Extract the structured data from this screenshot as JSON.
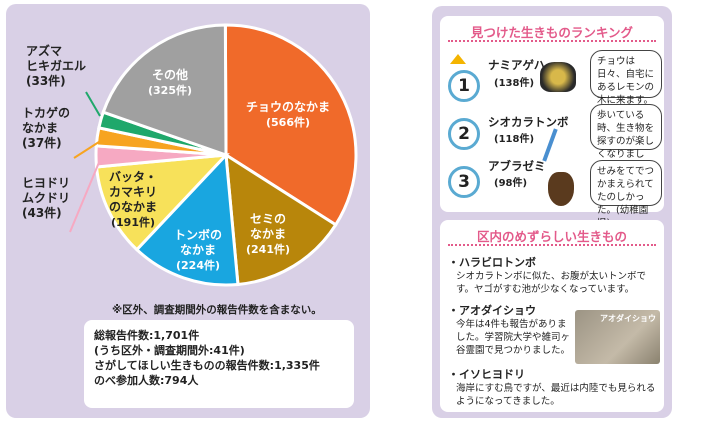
{
  "chart_data": {
    "type": "pie",
    "slices": [
      {
        "name": "チョウのなかま",
        "count": "(566件)",
        "value": 566,
        "color": "#f06a2a"
      },
      {
        "name": "セミのなかま",
        "count": "(241件)",
        "value": 241,
        "color": "#b8860b"
      },
      {
        "name": "トンボのなかま",
        "count": "(224件)",
        "value": 224,
        "color": "#19a6e0"
      },
      {
        "name": "バッタ・カマキリのなかま",
        "count": "(191件)",
        "value": 191,
        "color": "#f7e15a"
      },
      {
        "name": "ヒヨドリ ムクドリ",
        "count": "(43件)",
        "value": 43,
        "color": "#f6a9c2"
      },
      {
        "name": "トカゲのなかま",
        "count": "(37件)",
        "value": 37,
        "color": "#f7a420"
      },
      {
        "name": "アズマヒキガエル",
        "count": "(33件)",
        "value": 33,
        "color": "#1fa86b"
      },
      {
        "name": "その他",
        "count": "(325件)",
        "value": 325,
        "color": "#a0a0a0"
      }
    ]
  },
  "labels": {
    "cho_name": "チョウのなかま",
    "cho_count": "(566件)",
    "semi_line1": "セミの",
    "semi_line2": "なかま",
    "semi_count": "(241件)",
    "tonbo_line1": "トンボの",
    "tonbo_line2": "なかま",
    "tonbo_count": "(224件)",
    "batta_line1": "バッタ・",
    "batta_line2": "カマキリ",
    "batta_line3": "のなかま",
    "batta_count": "(191件)",
    "other_name": "その他",
    "other_count": "(325件)",
    "azuma_line1": "アズマ",
    "azuma_line2": "ヒキガエル",
    "azuma_count": "(33件)",
    "tokage_line1": "トカゲの",
    "tokage_line2": "なかま",
    "tokage_count": "(37件)",
    "hiyo_line1": "ヒヨドリ",
    "hiyo_line2": "ムクドリ",
    "hiyo_count": "(43件)"
  },
  "note": "※区外、調査期間外の報告件数を含まない。",
  "stats": [
    "総報告件数:1,701件",
    "(うち区外・調査期間外:41件)",
    "さがしてほしい生きものの報告件数:1,335件",
    "のべ参加人数:794人"
  ],
  "ranking": {
    "title": "見つけた生きものランキング",
    "items": [
      {
        "rank": "1",
        "name": "ナミアゲハ",
        "count": "(138件)",
        "comment": "チョウは日々、自宅にあるレモンの木に来ます。(40代)"
      },
      {
        "rank": "2",
        "name": "シオカラトンボ",
        "count": "(118件)",
        "comment": "歩いている時、生き物を探すのが楽しくなりました。(50代)"
      },
      {
        "rank": "3",
        "name": "アブラゼミ",
        "count": "(98件)",
        "comment": "せみをてでつかまえられてたのしかった。(幼稚園児)"
      }
    ]
  },
  "rare": {
    "title": "区内のめずらしい生きもの",
    "items": [
      {
        "name": "・ハラビロトンボ",
        "text": "シオカラトンボに似た、お腹が太いトンボです。ヤゴがすむ池が少なくなっています。"
      },
      {
        "name": "・アオダイショウ",
        "text": "今年は4件も報告がありました。学習院大学や雑司ヶ谷霊園で見つかりました。"
      },
      {
        "name": "・イソヒヨドリ",
        "text": "海岸にすむ鳥ですが、最近は内陸でも見られるようになってきました。"
      }
    ],
    "photo_label": "アオダイショウ"
  }
}
